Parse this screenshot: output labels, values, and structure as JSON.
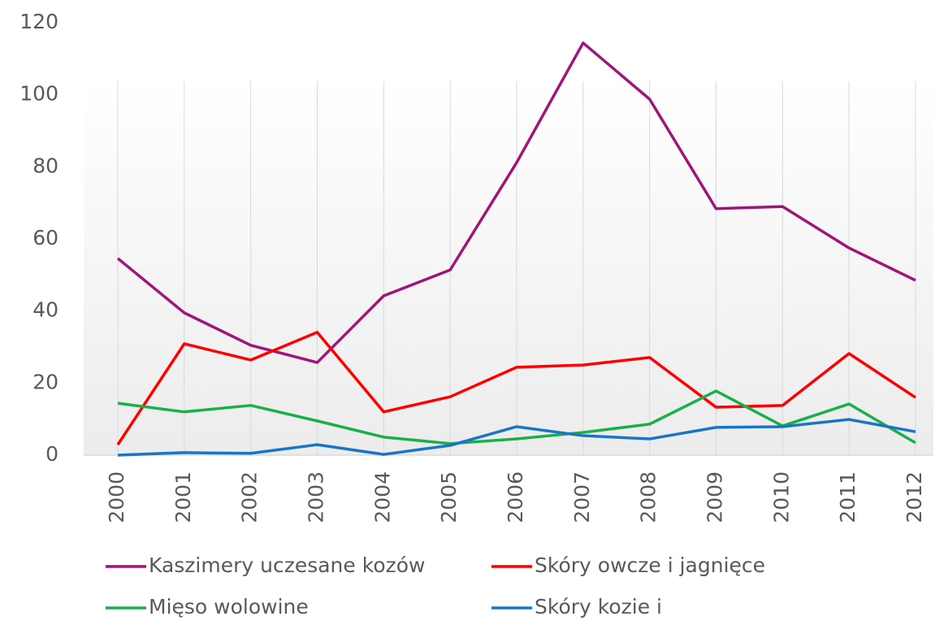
{
  "chart_data": {
    "type": "line",
    "categories": [
      "2000",
      "2001",
      "2002",
      "2003",
      "2004",
      "2005",
      "2006",
      "2007",
      "2008",
      "2009",
      "2010",
      "2011",
      "2012"
    ],
    "series": [
      {
        "name": "Kaszimery uczesane kozów",
        "color": "#a0157a",
        "values": [
          54.6,
          39.5,
          30.5,
          25.7,
          44.2,
          51.4,
          81.2,
          114.4,
          98.8,
          68.4,
          69.0,
          57.5,
          48.5
        ]
      },
      {
        "name": "Skóry owcze i jagnięce",
        "color": "#ff0000",
        "values": [
          2.9,
          30.9,
          26.4,
          34.1,
          12.0,
          16.2,
          24.4,
          25.0,
          27.1,
          13.3,
          13.8,
          28.2,
          16.0
        ]
      },
      {
        "name": "Mięso wolowine",
        "color": "#19b04b",
        "values": [
          14.4,
          12.0,
          13.8,
          9.5,
          5.0,
          3.2,
          4.5,
          6.3,
          8.6,
          17.8,
          8.1,
          14.2,
          3.4
        ]
      },
      {
        "name": "Skóry kozie i",
        "color": "#1a75c4",
        "values": [
          0,
          0.7,
          0.5,
          2.9,
          0.2,
          2.7,
          7.9,
          5.4,
          4.5,
          7.7,
          7.9,
          9.9,
          6.5
        ]
      }
    ],
    "ylim": [
      0,
      120
    ],
    "yticks": [
      0,
      20,
      40,
      60,
      80,
      100,
      120
    ],
    "grid": true
  }
}
